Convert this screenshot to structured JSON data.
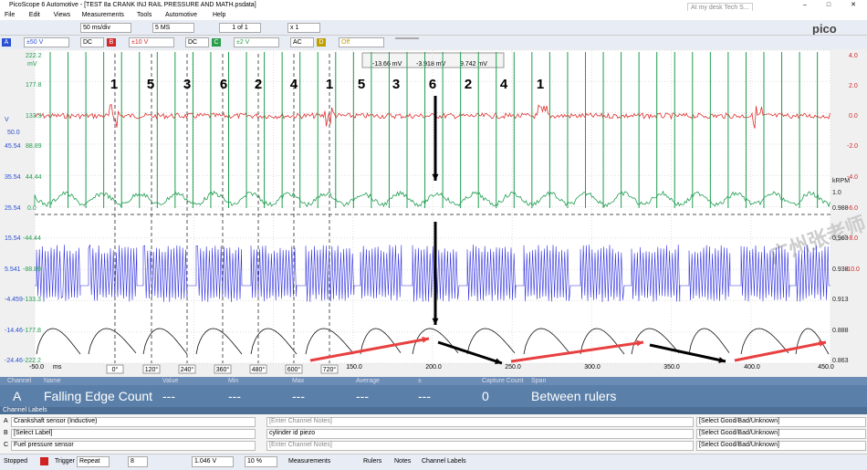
{
  "window": {
    "title": "PicoScope 6 Automotive - [TEST 8a CRANK INJ RAIL PRESSURE AND MATH.psdata]",
    "tooltip": "At my desk Tech S..."
  },
  "menu": [
    "File",
    "Edit",
    "Views",
    "Measurements",
    "Tools",
    "Automotive",
    "Help"
  ],
  "toolbar": {
    "timebase": "50 ms/div",
    "samples": "5 MS",
    "buffer": "1 of 1",
    "zoom": "x 1"
  },
  "channels": [
    {
      "name": "A",
      "range": "±50 V",
      "coupling": "DC"
    },
    {
      "name": "B",
      "range": "±10 V",
      "coupling": "DC"
    },
    {
      "name": "C",
      "range": "±2 V",
      "coupling": "AC"
    },
    {
      "name": "D",
      "range": "Off",
      "coupling": ""
    }
  ],
  "scope": {
    "left_axis": [
      "222.2",
      "mV",
      "177.8",
      "133.3",
      "V",
      "50.0",
      "45.54",
      "88.89",
      "35.54",
      "44.44",
      "25.54",
      "0.0",
      "15.54",
      "-44.44",
      "5.541",
      "-88.89",
      "-4.459",
      "-133.3",
      "-14.46",
      "-177.8",
      "-24.46",
      "-222.2"
    ],
    "right_axis": [
      "4.0",
      "2.0",
      "0.0",
      "-2.0",
      "-4.0",
      "kRPM",
      "1.0",
      "0.988",
      "-6.0",
      "0.963",
      "-8.0",
      "0.938",
      "-10.0",
      "0.913",
      "0.888",
      "0.863"
    ],
    "firing_order": [
      "1",
      "5",
      "3",
      "6",
      "2",
      "4",
      "1",
      "5",
      "3",
      "6",
      "2",
      "4",
      "1"
    ],
    "ruler_angles": [
      "0°",
      "120°",
      "240°",
      "360°",
      "480°",
      "600°",
      "720°"
    ],
    "x_axis": [
      "-50.0",
      "ms",
      "150.0",
      "200.0",
      "250.0",
      "300.0",
      "350.0",
      "400.0",
      "450.0"
    ],
    "ruler_legend": [
      "-13.66 mV",
      "-3.918 mV",
      "9.742 mV"
    ],
    "watermark": "广州张老师"
  },
  "measurements": {
    "headers": [
      "Channel",
      "Name",
      "Value",
      "Min",
      "Max",
      "Average",
      "±",
      "Capture Count",
      "Span"
    ],
    "row": [
      "A",
      "Falling Edge Count",
      "---",
      "---",
      "---",
      "---",
      "---",
      "0",
      "Between rulers"
    ]
  },
  "channel_labels": {
    "title": "Channel Labels",
    "rows": [
      [
        "A",
        "Crankshaft sensor (Inductive)",
        "[Enter Channel Notes]",
        "[Select Good/Bad/Unknown]"
      ],
      [
        "B",
        "[Select Label]",
        "cylinder id piezo",
        "[Select Good/Bad/Unknown]"
      ],
      [
        "C",
        "Fuel pressure sensor",
        "[Enter Channel Notes]",
        "[Select Good/Bad/Unknown]"
      ]
    ]
  },
  "status": {
    "state": "Stopped",
    "trigger": "Trigger",
    "mode": "Repeat",
    "channel": "8",
    "level": "1.046 V",
    "pretrigger": "10 %",
    "tabs": [
      "Measurements",
      "Rulers",
      "Notes",
      "Channel Labels"
    ]
  }
}
